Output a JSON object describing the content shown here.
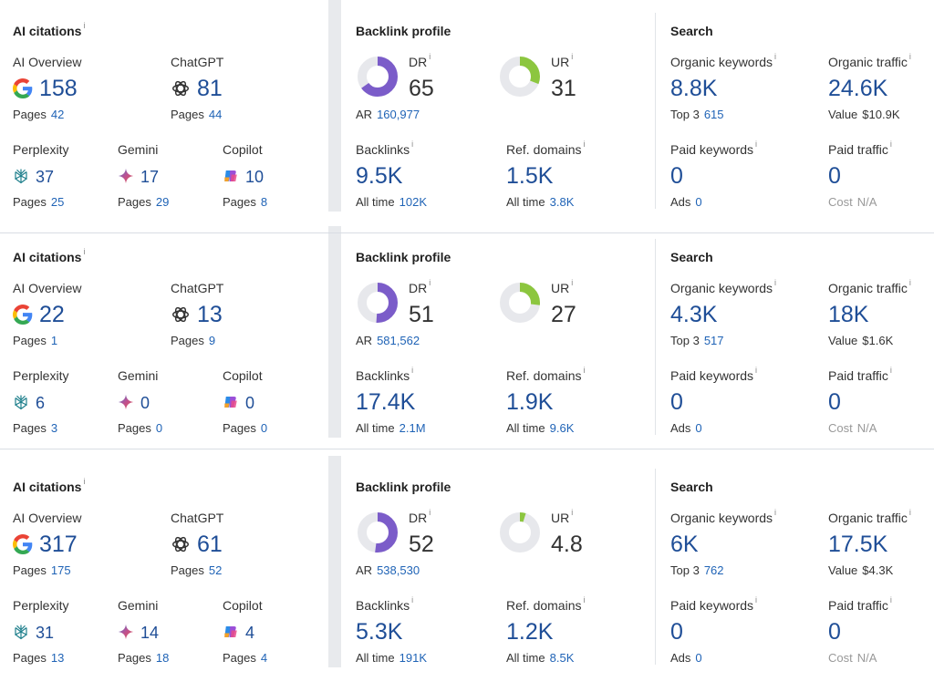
{
  "colors": {
    "value_blue": "#1f4e97",
    "link_blue": "#1f63b6",
    "dr_purple": "#7b5cc9",
    "ur_green": "#8cc63f",
    "donut_gray": "#e7e8ec"
  },
  "icons": {
    "ai_overview": "google-g-icon",
    "chatgpt": "openai-icon",
    "perplexity": "perplexity-icon",
    "gemini": "gemini-sparkle-icon",
    "copilot": "copilot-icon",
    "info": "info-icon"
  },
  "labels": {
    "ai_citations": "AI citations",
    "backlink_profile": "Backlink profile",
    "search": "Search",
    "ai_overview": "AI Overview",
    "chatgpt": "ChatGPT",
    "perplexity": "Perplexity",
    "gemini": "Gemini",
    "copilot": "Copilot",
    "pages": "Pages",
    "dr": "DR",
    "ur": "UR",
    "ar": "AR",
    "backlinks": "Backlinks",
    "ref_domains": "Ref. domains",
    "all_time": "All time",
    "organic_keywords": "Organic keywords",
    "organic_traffic": "Organic traffic",
    "top3": "Top 3",
    "value": "Value",
    "paid_keywords": "Paid keywords",
    "paid_traffic": "Paid traffic",
    "ads": "Ads",
    "cost": "Cost",
    "info": "i"
  },
  "blocks": [
    {
      "ai": {
        "ai_overview": "158",
        "ai_overview_pages": "42",
        "chatgpt": "81",
        "chatgpt_pages": "44",
        "perplexity": "37",
        "perplexity_pages": "25",
        "gemini": "17",
        "gemini_pages": "29",
        "copilot": "10",
        "copilot_pages": "8"
      },
      "backlink": {
        "dr": "65",
        "dr_value": 65,
        "ur": "31",
        "ur_value": 31,
        "ar": "160,977",
        "backlinks": "9.5K",
        "backlinks_all_time": "102K",
        "ref_domains": "1.5K",
        "ref_domains_all_time": "3.8K"
      },
      "search": {
        "organic_keywords": "8.8K",
        "top3": "615",
        "organic_traffic": "24.6K",
        "value": "$10.9K",
        "paid_keywords": "0",
        "ads": "0",
        "paid_traffic": "0",
        "cost": "N/A"
      }
    },
    {
      "ai": {
        "ai_overview": "22",
        "ai_overview_pages": "1",
        "chatgpt": "13",
        "chatgpt_pages": "9",
        "perplexity": "6",
        "perplexity_pages": "3",
        "gemini": "0",
        "gemini_pages": "0",
        "copilot": "0",
        "copilot_pages": "0"
      },
      "backlink": {
        "dr": "51",
        "dr_value": 51,
        "ur": "27",
        "ur_value": 27,
        "ar": "581,562",
        "backlinks": "17.4K",
        "backlinks_all_time": "2.1M",
        "ref_domains": "1.9K",
        "ref_domains_all_time": "9.6K"
      },
      "search": {
        "organic_keywords": "4.3K",
        "top3": "517",
        "organic_traffic": "18K",
        "value": "$1.6K",
        "paid_keywords": "0",
        "ads": "0",
        "paid_traffic": "0",
        "cost": "N/A"
      }
    },
    {
      "ai": {
        "ai_overview": "317",
        "ai_overview_pages": "175",
        "chatgpt": "61",
        "chatgpt_pages": "52",
        "perplexity": "31",
        "perplexity_pages": "13",
        "gemini": "14",
        "gemini_pages": "18",
        "copilot": "4",
        "copilot_pages": "4"
      },
      "backlink": {
        "dr": "52",
        "dr_value": 52,
        "ur": "4.8",
        "ur_value": 4.8,
        "ar": "538,530",
        "backlinks": "5.3K",
        "backlinks_all_time": "191K",
        "ref_domains": "1.2K",
        "ref_domains_all_time": "8.5K"
      },
      "search": {
        "organic_keywords": "6K",
        "top3": "762",
        "organic_traffic": "17.5K",
        "value": "$4.3K",
        "paid_keywords": "0",
        "ads": "0",
        "paid_traffic": "0",
        "cost": "N/A"
      }
    }
  ]
}
